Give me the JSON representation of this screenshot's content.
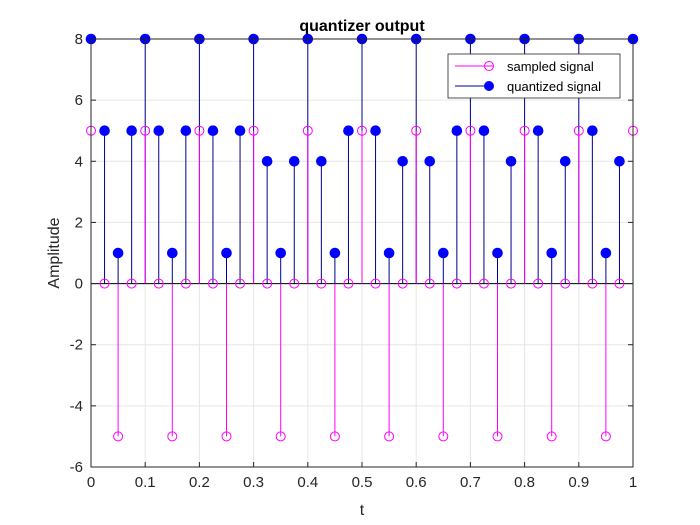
{
  "chart_data": {
    "type": "stem",
    "title": "quantizer output",
    "xlabel": "t",
    "ylabel": "Amplitude",
    "xlim": [
      0,
      1
    ],
    "ylim": [
      -6,
      8
    ],
    "xticks": [
      "0",
      "0.1",
      "0.2",
      "0.3",
      "0.4",
      "0.5",
      "0.6",
      "0.7",
      "0.8",
      "0.9",
      "1"
    ],
    "yticks": [
      "-6",
      "-4",
      "-2",
      "0",
      "2",
      "4",
      "6",
      "8"
    ],
    "grid": true,
    "legend_position": "top-right",
    "series": [
      {
        "name": "sampled signal",
        "color": "#ff00ff",
        "marker": "open-circle",
        "x": [
          0,
          0.025,
          0.05,
          0.075,
          0.1,
          0.125,
          0.15,
          0.175,
          0.2,
          0.225,
          0.25,
          0.275,
          0.3,
          0.325,
          0.35,
          0.375,
          0.4,
          0.425,
          0.45,
          0.475,
          0.5,
          0.525,
          0.55,
          0.575,
          0.6,
          0.625,
          0.65,
          0.675,
          0.7,
          0.725,
          0.75,
          0.775,
          0.8,
          0.825,
          0.85,
          0.875,
          0.9,
          0.925,
          0.95,
          0.975,
          1
        ],
        "y": [
          5,
          0,
          -5,
          0,
          5,
          0,
          -5,
          0,
          5,
          0,
          -5,
          0,
          5,
          0,
          -5,
          0,
          5,
          0,
          -5,
          0,
          5,
          0,
          -5,
          0,
          5,
          0,
          -5,
          0,
          5,
          0,
          -5,
          0,
          5,
          0,
          -5,
          0,
          5,
          0,
          -5,
          0,
          5
        ]
      },
      {
        "name": "quantized signal",
        "color": "#0000ff",
        "stem_color": "#00008b",
        "marker": "filled-circle",
        "x": [
          0,
          0.025,
          0.05,
          0.075,
          0.1,
          0.125,
          0.15,
          0.175,
          0.2,
          0.225,
          0.25,
          0.275,
          0.3,
          0.325,
          0.35,
          0.375,
          0.4,
          0.425,
          0.45,
          0.475,
          0.5,
          0.525,
          0.55,
          0.575,
          0.6,
          0.625,
          0.65,
          0.675,
          0.7,
          0.725,
          0.75,
          0.775,
          0.8,
          0.825,
          0.85,
          0.875,
          0.9,
          0.925,
          0.95,
          0.975,
          1
        ],
        "y": [
          8,
          5,
          1,
          5,
          8,
          5,
          1,
          5,
          8,
          5,
          1,
          5,
          8,
          4,
          1,
          4,
          8,
          4,
          1,
          5,
          8,
          5,
          1,
          4,
          8,
          4,
          1,
          5,
          8,
          5,
          1,
          4,
          8,
          5,
          1,
          4,
          8,
          5,
          1,
          4,
          8
        ]
      }
    ]
  }
}
